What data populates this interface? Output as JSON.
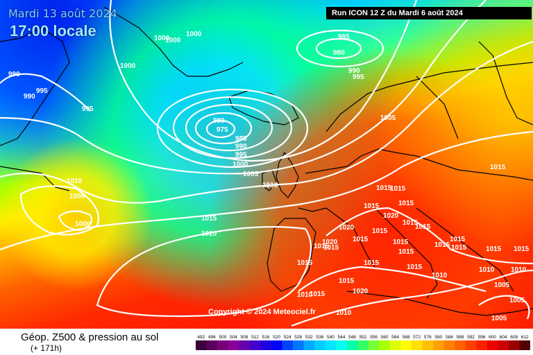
{
  "header": {
    "date": "Mardi 13 août 2024",
    "time": "17:00 locale",
    "run": "Run ICON 12 Z du Mardi 6 août 2024"
  },
  "copyright": "Copyright © 2024 Meteociel.fr",
  "legend": {
    "title": "Géop. Z500 & pression au sol",
    "subtitle": "(+ 171h)",
    "scale_values": [
      "492",
      "496",
      "500",
      "504",
      "508",
      "512",
      "516",
      "520",
      "524",
      "528",
      "532",
      "536",
      "540",
      "544",
      "548",
      "552",
      "556",
      "560",
      "564",
      "568",
      "572",
      "576",
      "580",
      "584",
      "588",
      "592",
      "596",
      "600",
      "604",
      "608",
      "612"
    ],
    "scale_colors": [
      "#3a003a",
      "#5a005a",
      "#780078",
      "#8a0099",
      "#6600aa",
      "#4400cc",
      "#2200e0",
      "#0000ff",
      "#0044ff",
      "#0077ff",
      "#00aaff",
      "#00ccff",
      "#00e5ff",
      "#00ffee",
      "#00ffaa",
      "#33ff66",
      "#77ff33",
      "#aaff00",
      "#ddff00",
      "#ffff00",
      "#ffe000",
      "#ffc000",
      "#ffa000",
      "#ff8000",
      "#ff6000",
      "#ff4000",
      "#ff2000",
      "#ee0000",
      "#cc0000",
      "#990000",
      "#550000"
    ]
  },
  "pressure_labels": [
    "1000",
    "1000",
    "1000",
    "1000",
    "990",
    "995",
    "990",
    "995",
    "985",
    "980",
    "990",
    "995",
    "980",
    "975",
    "985",
    "990",
    "995",
    "1000",
    "1005",
    "1010",
    "1005",
    "1010",
    "1005",
    "1000",
    "1015",
    "1020",
    "1015",
    "1015",
    "1015",
    "1015",
    "1020",
    "1020",
    "1015",
    "1015",
    "1015",
    "1015",
    "1015",
    "1015",
    "1020",
    "1015",
    "1015",
    "1015",
    "1015",
    "1015",
    "1015",
    "1015",
    "1015",
    "1015",
    "1020",
    "1010",
    "1015",
    "1015",
    "1010",
    "1010",
    "1010",
    "1015",
    "1015",
    "1010",
    "1005",
    "1005",
    "1005"
  ],
  "colors": {
    "isobar": "#ffffff",
    "land_outline": "#000000"
  }
}
